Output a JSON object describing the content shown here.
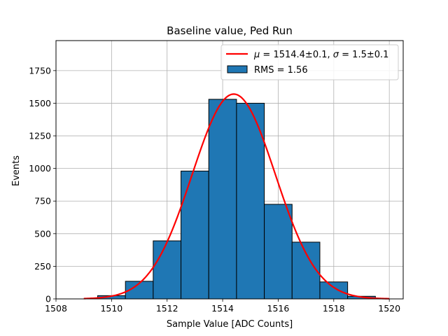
{
  "chart_data": {
    "type": "bar",
    "title": "Baseline value, Ped Run",
    "xlabel": "Sample Value [ADC Counts]",
    "ylabel": "Events",
    "xlim": [
      1508,
      1520.5
    ],
    "ylim": [
      0,
      1980
    ],
    "grid": true,
    "legend_position": "top-right",
    "x_ticks": [
      "1508",
      "1510",
      "1512",
      "1514",
      "1516",
      "1518",
      "1520"
    ],
    "y_ticks": [
      "0",
      "250",
      "500",
      "750",
      "1000",
      "1250",
      "1500",
      "1750"
    ],
    "histogram": {
      "name": "RMS = 1.56",
      "color": "#1f77b4",
      "edge_color": "#000000",
      "bin_edges": [
        1508.5,
        1509.5,
        1510.5,
        1511.5,
        1512.5,
        1513.5,
        1514.5,
        1515.5,
        1516.5,
        1517.5,
        1518.5,
        1519.5
      ],
      "counts": [
        0,
        25,
        135,
        445,
        980,
        1530,
        1500,
        725,
        435,
        130,
        20
      ]
    },
    "fit": {
      "type": "gaussian",
      "color": "#ff0000",
      "mu": 1514.4,
      "sigma": 1.5,
      "amplitude": 1570,
      "x_range": [
        1509,
        1520
      ],
      "label_parts": {
        "mu_symbol": "μ",
        "mu_text": " = 1514.4±0.1, ",
        "sigma_symbol": "σ",
        "sigma_text": " = 1.5±0.1"
      }
    }
  }
}
